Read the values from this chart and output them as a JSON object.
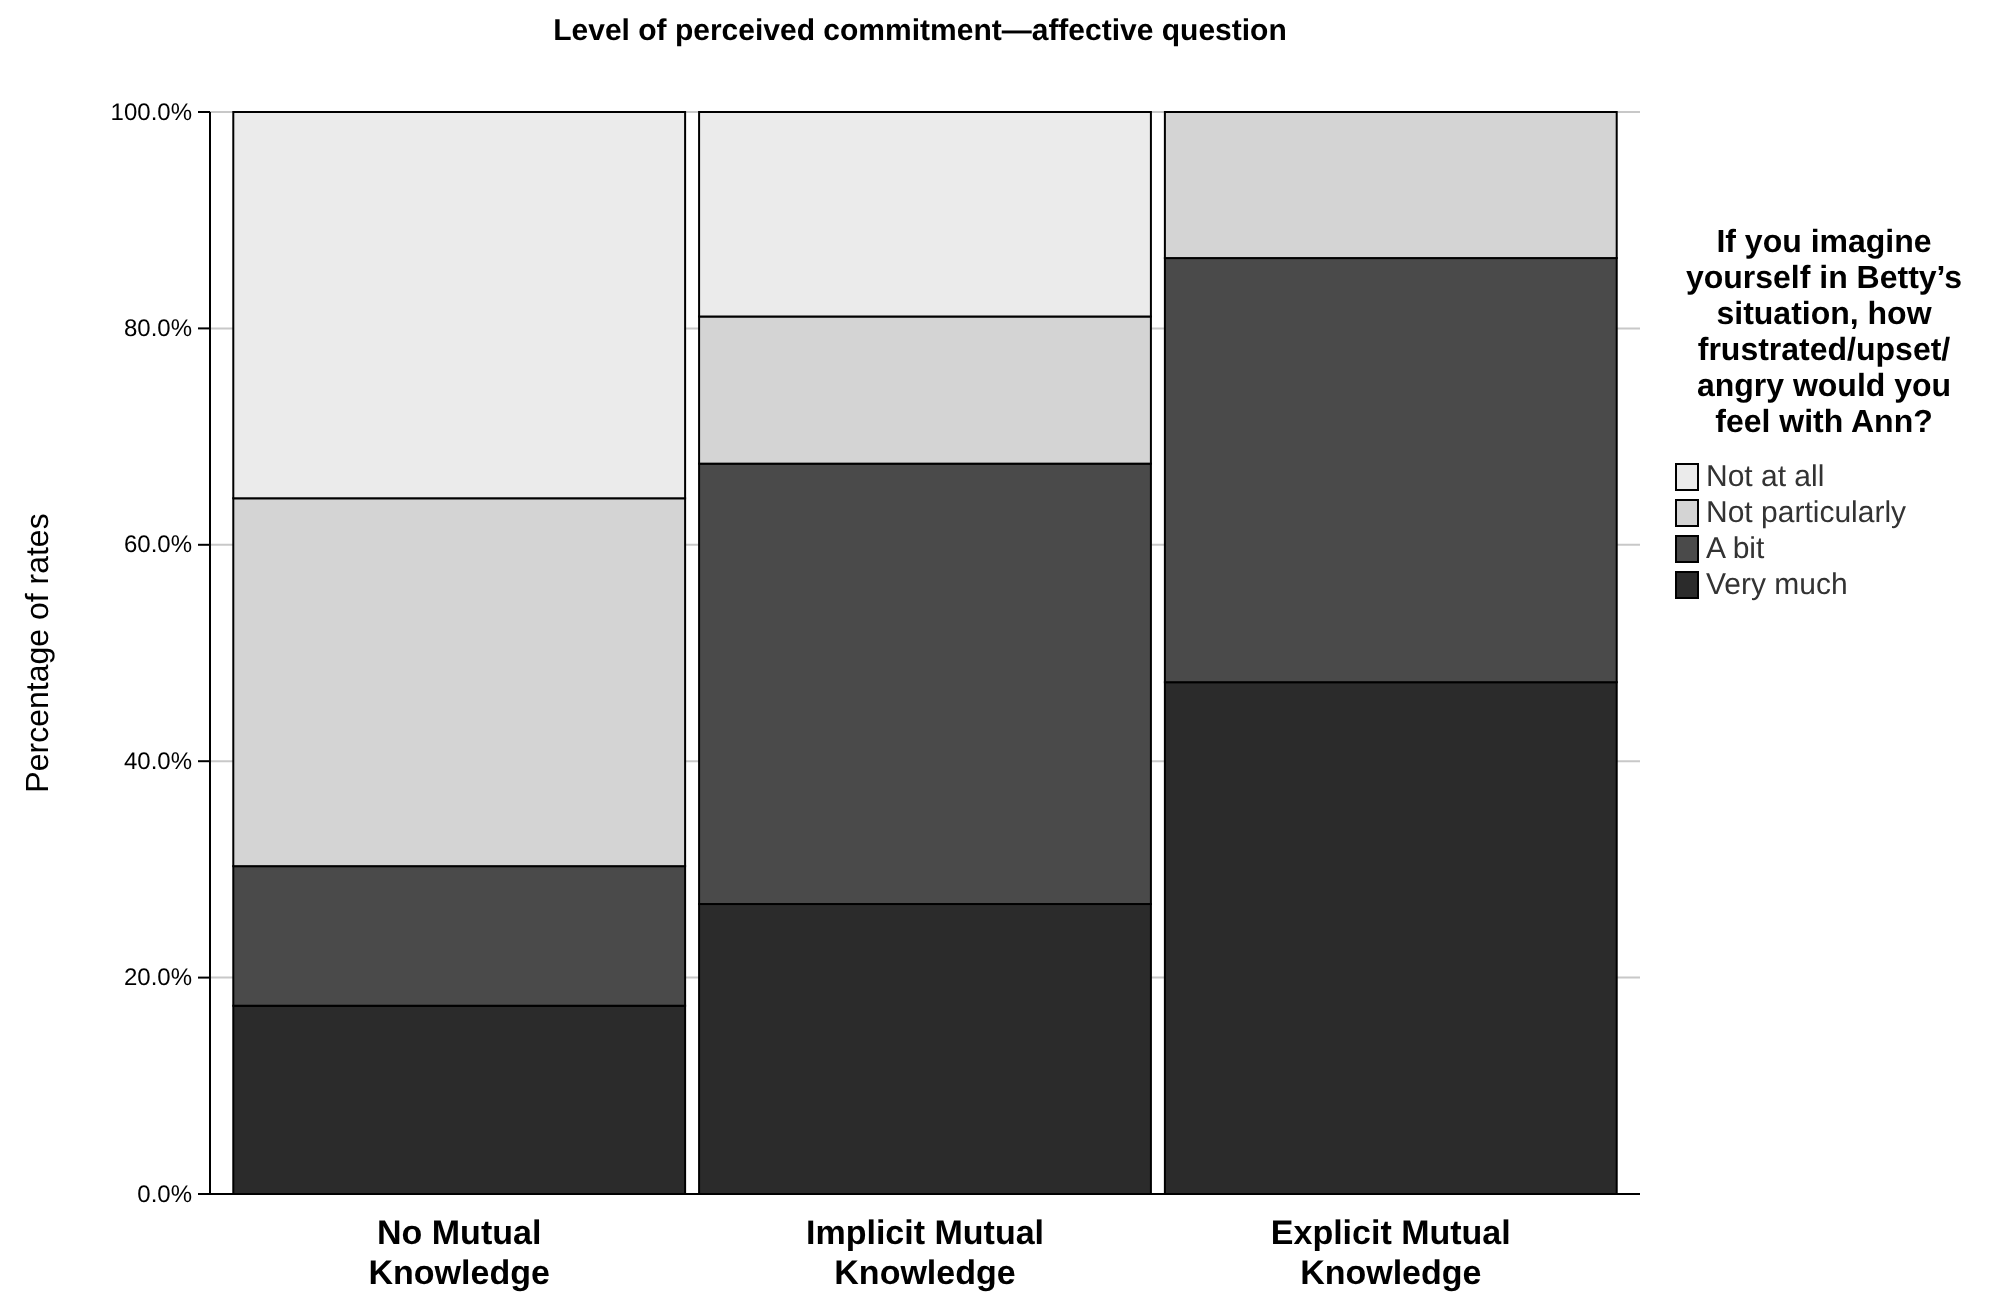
{
  "chart_data": {
    "type": "bar",
    "stacked": true,
    "title": "Level of perceived commitment—affective question",
    "ylabel": "Percentage of rates",
    "legend_title": "If you imagine yourself in Betty’s situation, how frustrated/upset/ angry would you feel with Ann?",
    "categories": [
      "No Mutual Knowledge",
      "Implicit Mutual Knowledge",
      "Explicit Mutual Knowledge"
    ],
    "series": [
      {
        "name": "Very much",
        "color": "#2b2b2b",
        "values": [
          17.4,
          26.8,
          47.3
        ]
      },
      {
        "name": "A bit",
        "color": "#4a4a4a",
        "values": [
          12.9,
          40.7,
          39.2
        ]
      },
      {
        "name": "Not particularly",
        "color": "#d4d4d4",
        "values": [
          34.0,
          13.6,
          13.5
        ]
      },
      {
        "name": "Not at all",
        "color": "#ebebeb",
        "values": [
          35.7,
          18.9,
          0
        ]
      }
    ],
    "ylim": [
      0,
      100
    ],
    "yticks": [
      {
        "value": 0,
        "label": "0.0%"
      },
      {
        "value": 20,
        "label": "20.0%"
      },
      {
        "value": 40,
        "label": "40.0%"
      },
      {
        "value": 60,
        "label": "60.0%"
      },
      {
        "value": 80,
        "label": "80.0%"
      },
      {
        "value": 100,
        "label": "100.0%"
      }
    ],
    "grid": "y",
    "legend": "right"
  }
}
